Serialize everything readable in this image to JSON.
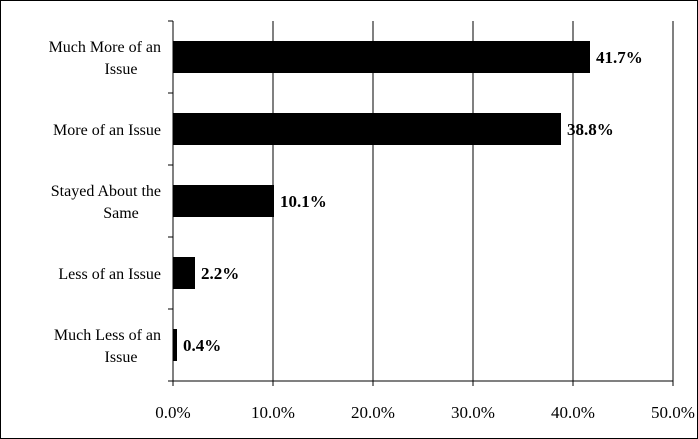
{
  "chart_data": {
    "type": "bar",
    "orientation": "horizontal",
    "categories": [
      "Much More of an Issue",
      "More of an Issue",
      "Stayed About the Same",
      "Less of an Issue",
      "Much Less of an Issue"
    ],
    "category_label_lines": [
      [
        "Much More of an",
        "Issue"
      ],
      [
        "More of an Issue"
      ],
      [
        "Stayed About the",
        "Same"
      ],
      [
        "Less of an Issue"
      ],
      [
        "Much Less of an",
        "Issue"
      ]
    ],
    "values": [
      41.7,
      38.8,
      10.1,
      2.2,
      0.4
    ],
    "data_labels": [
      "41.7%",
      "38.8%",
      "10.1%",
      "2.2%",
      "0.4%"
    ],
    "xlim": [
      0,
      50
    ],
    "x_ticks": [
      0,
      10,
      20,
      30,
      40,
      50
    ],
    "x_tick_labels": [
      "0.0%",
      "10.0%",
      "20.0%",
      "30.0%",
      "40.0%",
      "50.0%"
    ],
    "grid": "vertical",
    "legend": "none",
    "title": "",
    "xlabel": "",
    "ylabel": "",
    "bar_color": "#000000"
  }
}
